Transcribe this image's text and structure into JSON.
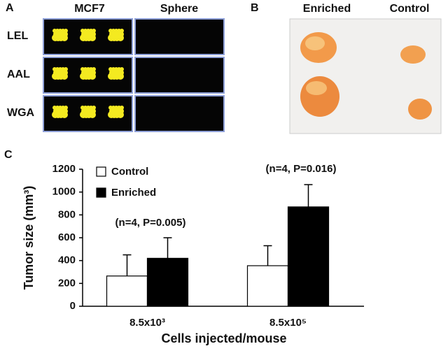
{
  "panel_a": {
    "label": "A",
    "columns": [
      "MCF7",
      "Sphere"
    ],
    "rows": [
      "LEL",
      "AAL",
      "WGA"
    ]
  },
  "panel_b": {
    "label": "B",
    "columns": [
      "Enriched",
      "Control"
    ]
  },
  "chart_data": {
    "type": "bar",
    "panel_label": "C",
    "ylabel": "Tumor size (mm³)",
    "xlabel": "Cells injected/mouse",
    "categories": [
      "8.5x10³",
      "8.5x10⁵"
    ],
    "series": [
      {
        "name": "Control",
        "color": "#ffffff",
        "values": [
          265,
          355
        ],
        "errors": [
          185,
          175
        ]
      },
      {
        "name": "Enriched",
        "color": "#000000",
        "values": [
          420,
          870
        ],
        "errors": [
          180,
          195
        ]
      }
    ],
    "annotations": [
      "(n=4, P=0.005)",
      "(n=4, P=0.016)"
    ],
    "ylim": [
      0,
      1200
    ],
    "yticks": [
      0,
      200,
      400,
      600,
      800,
      1000,
      1200
    ],
    "legend": "upper left"
  }
}
